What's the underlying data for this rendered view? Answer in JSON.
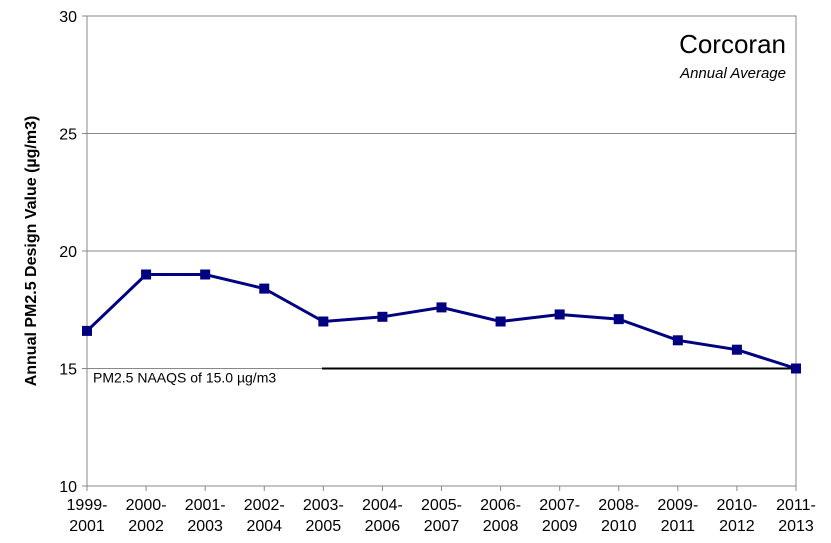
{
  "chart_data": {
    "type": "line",
    "title": "Corcoran",
    "subtitle": "Annual Average",
    "ylabel": "Annual PM2.5 Design Value (µg/m3)",
    "xlabel": "",
    "ylim": [
      10,
      30
    ],
    "yticks": [
      "10",
      "15",
      "20",
      "25",
      "30"
    ],
    "categories": [
      [
        "1999-",
        "2001"
      ],
      [
        "2000-",
        "2002"
      ],
      [
        "2001-",
        "2003"
      ],
      [
        "2002-",
        "2004"
      ],
      [
        "2003-",
        "2005"
      ],
      [
        "2004-",
        "2006"
      ],
      [
        "2005-",
        "2007"
      ],
      [
        "2006-",
        "2008"
      ],
      [
        "2007-",
        "2009"
      ],
      [
        "2008-",
        "2010"
      ],
      [
        "2009-",
        "2011"
      ],
      [
        "2010-",
        "2012"
      ],
      [
        "2011-",
        "2013"
      ]
    ],
    "series": [
      {
        "values": [
          16.6,
          19.0,
          19.0,
          18.4,
          17.0,
          17.2,
          17.6,
          17.0,
          17.3,
          17.1,
          16.2,
          15.8,
          15.0
        ]
      }
    ],
    "reference_line": {
      "value": 15.0,
      "label": "PM2.5 NAAQS of 15.0 µg/m3"
    },
    "grid": true,
    "colors": {
      "series": "#000080",
      "grid": "#888888",
      "reference": "#000000"
    }
  }
}
